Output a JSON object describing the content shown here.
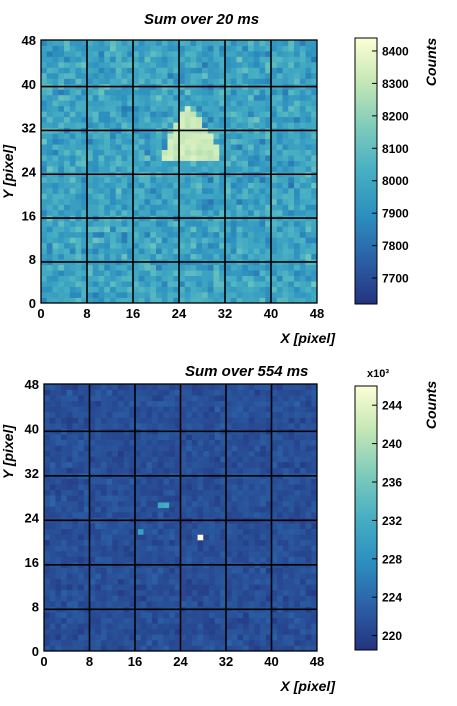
{
  "chart_data": [
    {
      "type": "heatmap",
      "title": "Sum over 20 ms",
      "xlabel": "X [pixel]",
      "ylabel": "Y [pixel]",
      "xlim": [
        0,
        48
      ],
      "ylim": [
        0,
        48
      ],
      "xticks": [
        "0",
        "8",
        "16",
        "24",
        "32",
        "40",
        "48"
      ],
      "yticks": [
        "0",
        "8",
        "16",
        "24",
        "32",
        "40",
        "48"
      ],
      "grid_lines": [
        8,
        16,
        24,
        32,
        40
      ],
      "grid_lines_y": [
        7.5,
        15.5,
        23.5,
        31.5,
        39.5
      ],
      "colormap": [
        "#24347f",
        "#2b60a6",
        "#2c8fbf",
        "#47afc3",
        "#7fcbbb",
        "#c4e7b5",
        "#fdfed5"
      ],
      "colorbar": {
        "label": "Counts",
        "multiplier": "",
        "range": [
          7620,
          8440
        ],
        "ticks": [
          7700,
          7800,
          7900,
          8000,
          8100,
          8200,
          8300,
          8400
        ],
        "tick_labels": [
          "7700",
          "7800",
          "7900",
          "8000",
          "8100",
          "8200",
          "8300",
          "8400"
        ]
      },
      "background": {
        "mean": 7980,
        "spread": 110
      },
      "hotspot": {
        "value": 8320,
        "rows": [
          {
            "y": 26,
            "x": [
              21,
              31
            ]
          },
          {
            "y": 27,
            "x": [
              21,
              31
            ]
          },
          {
            "y": 28,
            "x": [
              22,
              31
            ]
          },
          {
            "y": 29,
            "x": [
              22,
              30
            ]
          },
          {
            "y": 30,
            "x": [
              22,
              30
            ]
          },
          {
            "y": 31,
            "x": [
              23,
              29
            ]
          },
          {
            "y": 32,
            "x": [
              23,
              28
            ]
          },
          {
            "y": 33,
            "x": [
              24,
              28
            ]
          },
          {
            "y": 34,
            "x": [
              24,
              27
            ]
          },
          {
            "y": 35,
            "x": [
              25,
              26
            ]
          }
        ]
      },
      "hot_pixels": []
    },
    {
      "type": "heatmap",
      "title": "Sum over 554 ms",
      "xlabel": "X [pixel]",
      "ylabel": "Y [pixel]",
      "xlim": [
        0,
        48
      ],
      "ylim": [
        0,
        48
      ],
      "xticks": [
        "0",
        "8",
        "16",
        "24",
        "32",
        "40",
        "48"
      ],
      "yticks": [
        "0",
        "8",
        "16",
        "24",
        "32",
        "40",
        "48"
      ],
      "grid_lines": [
        8,
        16,
        24,
        32,
        40
      ],
      "grid_lines_y": [
        7.5,
        15.5,
        23.5,
        31.5,
        39.5
      ],
      "colormap": [
        "#24347f",
        "#2b60a6",
        "#2c8fbf",
        "#47afc3",
        "#7fcbbb",
        "#c4e7b5",
        "#fdfed5"
      ],
      "colorbar": {
        "label": "Counts",
        "multiplier": "x10³",
        "range": [
          218.5,
          246
        ],
        "ticks": [
          220,
          224,
          228,
          232,
          236,
          240,
          244
        ],
        "tick_labels": [
          "220",
          "224",
          "228",
          "232",
          "236",
          "240",
          "244"
        ]
      },
      "background": {
        "mean": 221.3,
        "spread": 1.4
      },
      "hotspot": null,
      "hot_pixels": [
        {
          "x": 20.5,
          "y": 26.2,
          "value": 231
        },
        {
          "x": 21.5,
          "y": 26.2,
          "value": 232
        },
        {
          "x": 17,
          "y": 21.4,
          "value": 230
        },
        {
          "x": 27.5,
          "y": 20.4,
          "value": 247
        }
      ]
    }
  ]
}
